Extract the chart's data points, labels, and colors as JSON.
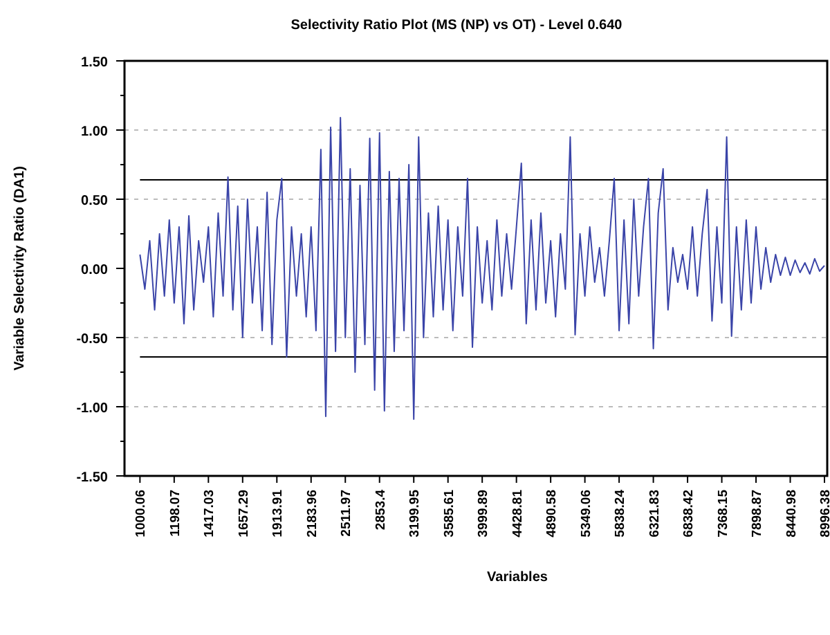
{
  "chart_data": {
    "type": "line",
    "title": "Selectivity Ratio Plot (MS (NP) vs OT) - Level 0.640",
    "xlabel": "Variables",
    "ylabel": "Variable Selectivity Ratio (DA1)",
    "categories": [
      "1000.06",
      null,
      null,
      null,
      null,
      null,
      null,
      "1198.07",
      null,
      null,
      null,
      null,
      null,
      null,
      "1417.03",
      null,
      null,
      null,
      null,
      null,
      null,
      "1657.29",
      null,
      null,
      null,
      null,
      null,
      null,
      "1913.91",
      null,
      null,
      null,
      null,
      null,
      null,
      "2183.96",
      null,
      null,
      null,
      null,
      null,
      null,
      "2511.97",
      null,
      null,
      null,
      null,
      null,
      null,
      "2853.4",
      null,
      null,
      null,
      null,
      null,
      null,
      "3199.95",
      null,
      null,
      null,
      null,
      null,
      null,
      "3585.61",
      null,
      null,
      null,
      null,
      null,
      null,
      "3999.89",
      null,
      null,
      null,
      null,
      null,
      null,
      "4428.81",
      null,
      null,
      null,
      null,
      null,
      null,
      "4890.58",
      null,
      null,
      null,
      null,
      null,
      null,
      "5349.06",
      null,
      null,
      null,
      null,
      null,
      null,
      "5838.24",
      null,
      null,
      null,
      null,
      null,
      null,
      "6321.83",
      null,
      null,
      null,
      null,
      null,
      null,
      "6838.42",
      null,
      null,
      null,
      null,
      null,
      null,
      "7368.15",
      null,
      null,
      null,
      null,
      null,
      null,
      "7898.87",
      null,
      null,
      null,
      null,
      null,
      null,
      "8440.98",
      null,
      null,
      null,
      null,
      null,
      null,
      "8996.38"
    ],
    "series": [
      {
        "color": "#3a44a8",
        "values": [
          0.1,
          -0.15,
          0.2,
          -0.3,
          0.25,
          -0.2,
          0.35,
          -0.25,
          0.3,
          -0.4,
          0.38,
          -0.3,
          0.2,
          -0.1,
          0.3,
          -0.35,
          0.4,
          -0.2,
          0.66,
          -0.3,
          0.45,
          -0.5,
          0.5,
          -0.25,
          0.3,
          -0.45,
          0.55,
          -0.55,
          0.35,
          0.65,
          -0.64,
          0.3,
          -0.2,
          0.25,
          -0.35,
          0.3,
          -0.45,
          0.86,
          -1.07,
          1.02,
          -0.6,
          1.09,
          -0.5,
          0.72,
          -0.75,
          0.6,
          -0.55,
          0.94,
          -0.88,
          0.98,
          -1.03,
          0.7,
          -0.6,
          0.65,
          -0.45,
          0.75,
          -1.09,
          0.95,
          -0.5,
          0.4,
          -0.35,
          0.45,
          -0.3,
          0.35,
          -0.45,
          0.3,
          -0.2,
          0.65,
          -0.57,
          0.3,
          -0.25,
          0.2,
          -0.3,
          0.35,
          -0.2,
          0.25,
          -0.15,
          0.3,
          0.76,
          -0.4,
          0.35,
          -0.3,
          0.4,
          -0.25,
          0.2,
          -0.35,
          0.25,
          -0.15,
          0.95,
          -0.48,
          0.25,
          -0.2,
          0.3,
          -0.1,
          0.15,
          -0.2,
          0.2,
          0.65,
          -0.45,
          0.35,
          -0.4,
          0.5,
          -0.2,
          0.3,
          0.65,
          -0.58,
          0.4,
          0.72,
          -0.3,
          0.15,
          -0.1,
          0.1,
          -0.15,
          0.3,
          -0.2,
          0.25,
          0.57,
          -0.38,
          0.3,
          -0.25,
          0.95,
          -0.49,
          0.3,
          -0.3,
          0.35,
          -0.25,
          0.3,
          -0.15,
          0.15,
          -0.1,
          0.1,
          -0.05,
          0.08,
          -0.05,
          0.06,
          -0.03,
          0.04,
          -0.04,
          0.07,
          -0.02,
          0.02
        ]
      }
    ],
    "ylim": [
      -1.5,
      1.5
    ],
    "yticks": [
      {
        "value": -1.5,
        "label": "-1.50"
      },
      {
        "value": -1.25,
        "label": null
      },
      {
        "value": -1,
        "label": "-1.00"
      },
      {
        "value": -0.75,
        "label": null
      },
      {
        "value": -0.5,
        "label": "-0.50"
      },
      {
        "value": -0.25,
        "label": null
      },
      {
        "value": 0,
        "label": "0.00"
      },
      {
        "value": 0.25,
        "label": null
      },
      {
        "value": 0.5,
        "label": "0.50"
      },
      {
        "value": 0.75,
        "label": null
      },
      {
        "value": 1,
        "label": "1.00"
      },
      {
        "value": 1.25,
        "label": null
      },
      {
        "value": 1.5,
        "label": "1.50"
      }
    ],
    "grid": "y",
    "marker": "none",
    "line_style": "solid",
    "ref_lines": [
      {
        "axis": "y",
        "value": 0.64,
        "color": "#000000"
      },
      {
        "axis": "y",
        "value": -0.64,
        "color": "#000000"
      }
    ]
  }
}
